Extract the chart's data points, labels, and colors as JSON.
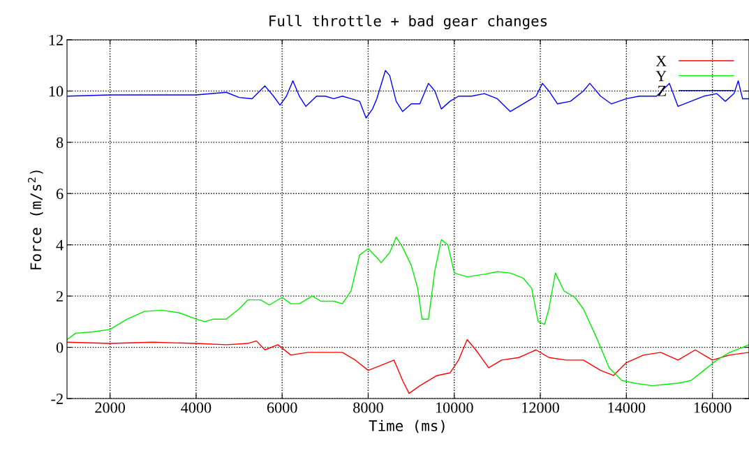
{
  "chart_data": {
    "type": "line",
    "title": "Full throttle + bad gear changes",
    "xlabel": "Time (ms)",
    "ylabel": "Force (m/s$^{2}$)",
    "xlim": [
      1000,
      16850
    ],
    "xticks": [
      2000,
      4000,
      6000,
      8000,
      10000,
      12000,
      14000,
      16000
    ],
    "ylim": [
      -2,
      12
    ],
    "yticks": [
      -2,
      0,
      2,
      4,
      6,
      8,
      10,
      12
    ],
    "grid": true,
    "legend": "top right",
    "marker": "none",
    "line_style": "solid",
    "series": [
      {
        "name": "X",
        "color": "#ff0000",
        "x": [
          1000,
          2000,
          3000,
          4000,
          4700,
          5200,
          5400,
          5600,
          5900,
          6200,
          6600,
          7000,
          7400,
          7700,
          8000,
          8300,
          8600,
          8800,
          8950,
          9200,
          9600,
          9900,
          10100,
          10300,
          10500,
          10800,
          11100,
          11500,
          11900,
          12200,
          12600,
          13000,
          13400,
          13700,
          14000,
          14400,
          14800,
          15200,
          15600,
          16000,
          16400,
          16850
        ],
        "values": [
          0.2,
          0.15,
          0.2,
          0.15,
          0.1,
          0.15,
          0.25,
          -0.1,
          0.1,
          -0.3,
          -0.2,
          -0.2,
          -0.2,
          -0.5,
          -0.9,
          -0.7,
          -0.5,
          -1.3,
          -1.8,
          -1.5,
          -1.1,
          -1.0,
          -0.5,
          0.3,
          -0.1,
          -0.8,
          -0.5,
          -0.4,
          -0.1,
          -0.4,
          -0.5,
          -0.5,
          -0.9,
          -1.1,
          -0.6,
          -0.3,
          -0.2,
          -0.5,
          -0.1,
          -0.5,
          -0.3,
          -0.2
        ]
      },
      {
        "name": "Y",
        "color": "#00ee00",
        "x": [
          1000,
          1200,
          1600,
          2000,
          2400,
          2800,
          3200,
          3600,
          4000,
          4200,
          4400,
          4700,
          5000,
          5200,
          5500,
          5700,
          6000,
          6200,
          6400,
          6700,
          6900,
          7200,
          7400,
          7600,
          7800,
          8000,
          8200,
          8300,
          8500,
          8650,
          8800,
          9000,
          9150,
          9250,
          9400,
          9550,
          9700,
          9850,
          10000,
          10300,
          10700,
          11000,
          11300,
          11600,
          11800,
          11950,
          12100,
          12200,
          12350,
          12550,
          12800,
          13000,
          13300,
          13600,
          13900,
          14200,
          14600,
          14900,
          15200,
          15500,
          15800,
          16100,
          16400,
          16700,
          16850
        ],
        "values": [
          0.3,
          0.55,
          0.6,
          0.7,
          1.1,
          1.4,
          1.45,
          1.35,
          1.1,
          1.0,
          1.1,
          1.1,
          1.5,
          1.85,
          1.85,
          1.65,
          1.95,
          1.7,
          1.7,
          2.0,
          1.8,
          1.8,
          1.7,
          2.2,
          3.6,
          3.85,
          3.5,
          3.3,
          3.7,
          4.3,
          3.9,
          3.2,
          2.3,
          1.1,
          1.1,
          3.0,
          4.2,
          4.0,
          2.9,
          2.75,
          2.85,
          2.95,
          2.9,
          2.7,
          2.3,
          1.0,
          0.9,
          1.5,
          2.9,
          2.2,
          1.95,
          1.5,
          0.4,
          -0.8,
          -1.3,
          -1.4,
          -1.5,
          -1.45,
          -1.4,
          -1.3,
          -0.9,
          -0.5,
          -0.2,
          0.0,
          0.1
        ]
      },
      {
        "name": "Z",
        "color": "#0000ff",
        "x": [
          1000,
          2000,
          3000,
          4000,
          4700,
          5000,
          5300,
          5600,
          5800,
          5950,
          6100,
          6250,
          6400,
          6550,
          6800,
          7000,
          7200,
          7400,
          7600,
          7800,
          7950,
          8100,
          8200,
          8400,
          8500,
          8650,
          8800,
          9000,
          9200,
          9400,
          9550,
          9700,
          9900,
          10100,
          10400,
          10700,
          11000,
          11300,
          11600,
          11900,
          12050,
          12200,
          12400,
          12700,
          13000,
          13150,
          13400,
          13650,
          14000,
          14300,
          14700,
          15000,
          15200,
          15500,
          15800,
          16100,
          16300,
          16500,
          16600,
          16700,
          16850
        ],
        "values": [
          9.8,
          9.85,
          9.85,
          9.85,
          9.95,
          9.75,
          9.7,
          10.2,
          9.8,
          9.45,
          9.8,
          10.4,
          9.8,
          9.4,
          9.8,
          9.8,
          9.7,
          9.8,
          9.7,
          9.6,
          8.95,
          9.3,
          9.7,
          10.8,
          10.6,
          9.6,
          9.2,
          9.5,
          9.5,
          10.3,
          10.0,
          9.3,
          9.6,
          9.8,
          9.8,
          9.9,
          9.7,
          9.2,
          9.5,
          9.8,
          10.3,
          10.0,
          9.5,
          9.6,
          10.0,
          10.3,
          9.8,
          9.5,
          9.7,
          9.8,
          9.8,
          10.3,
          9.4,
          9.6,
          9.8,
          9.9,
          9.6,
          9.9,
          10.4,
          9.7,
          9.7
        ]
      }
    ]
  }
}
